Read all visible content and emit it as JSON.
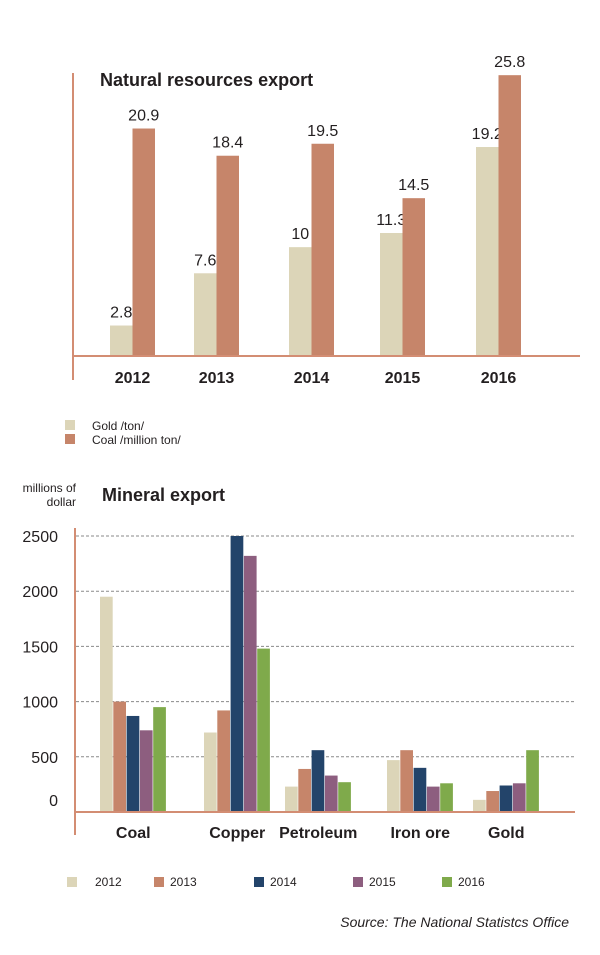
{
  "chart_data": [
    {
      "type": "bar",
      "title": "Natural resources export",
      "xlabel": "",
      "ylabel": "",
      "categories": [
        "2012",
        "2013",
        "2014",
        "2015",
        "2016"
      ],
      "series": [
        {
          "name": "Gold /ton/",
          "color": "#dcd5b8",
          "values": [
            2.8,
            7.6,
            10,
            11.3,
            19.2
          ],
          "labels": [
            "2.8",
            "7.6",
            "10",
            "11.3",
            "19.2"
          ]
        },
        {
          "name": "Coal /million ton/",
          "color": "#c6856a",
          "values": [
            20.9,
            18.4,
            19.5,
            14.5,
            25.8
          ],
          "labels": [
            "20.9",
            "18.4",
            "19.5",
            "14.5",
            "25.8"
          ]
        }
      ],
      "ylim": [
        0,
        26
      ],
      "grid": false,
      "legend": "bottom-left",
      "axis_color": "#d38d73"
    },
    {
      "type": "bar",
      "title": "Mineral export",
      "ylabel": "millions of dollar",
      "ylabel_lines": [
        "millions of",
        "dollar"
      ],
      "xlabel": "",
      "categories": [
        "Coal",
        "Copper",
        "Petroleum",
        "Iron ore",
        "Gold"
      ],
      "series": [
        {
          "name": "2012",
          "color": "#dcd5b8",
          "values": [
            1950,
            720,
            230,
            470,
            110
          ]
        },
        {
          "name": "2013",
          "color": "#c6856a",
          "values": [
            1000,
            920,
            390,
            560,
            190
          ]
        },
        {
          "name": "2014",
          "color": "#23446a",
          "values": [
            870,
            2500,
            560,
            400,
            240
          ]
        },
        {
          "name": "2015",
          "color": "#8d5e7f",
          "values": [
            740,
            2320,
            330,
            230,
            260
          ]
        },
        {
          "name": "2016",
          "color": "#7faa4b",
          "values": [
            950,
            1480,
            270,
            260,
            560
          ]
        }
      ],
      "yticks": [
        0,
        500,
        1000,
        1500,
        2000,
        2500
      ],
      "ylim": [
        0,
        2500
      ],
      "grid": true,
      "legend": "bottom",
      "axis_color": "#d38d73"
    }
  ],
  "source": "Source: The National Statistcs Office"
}
